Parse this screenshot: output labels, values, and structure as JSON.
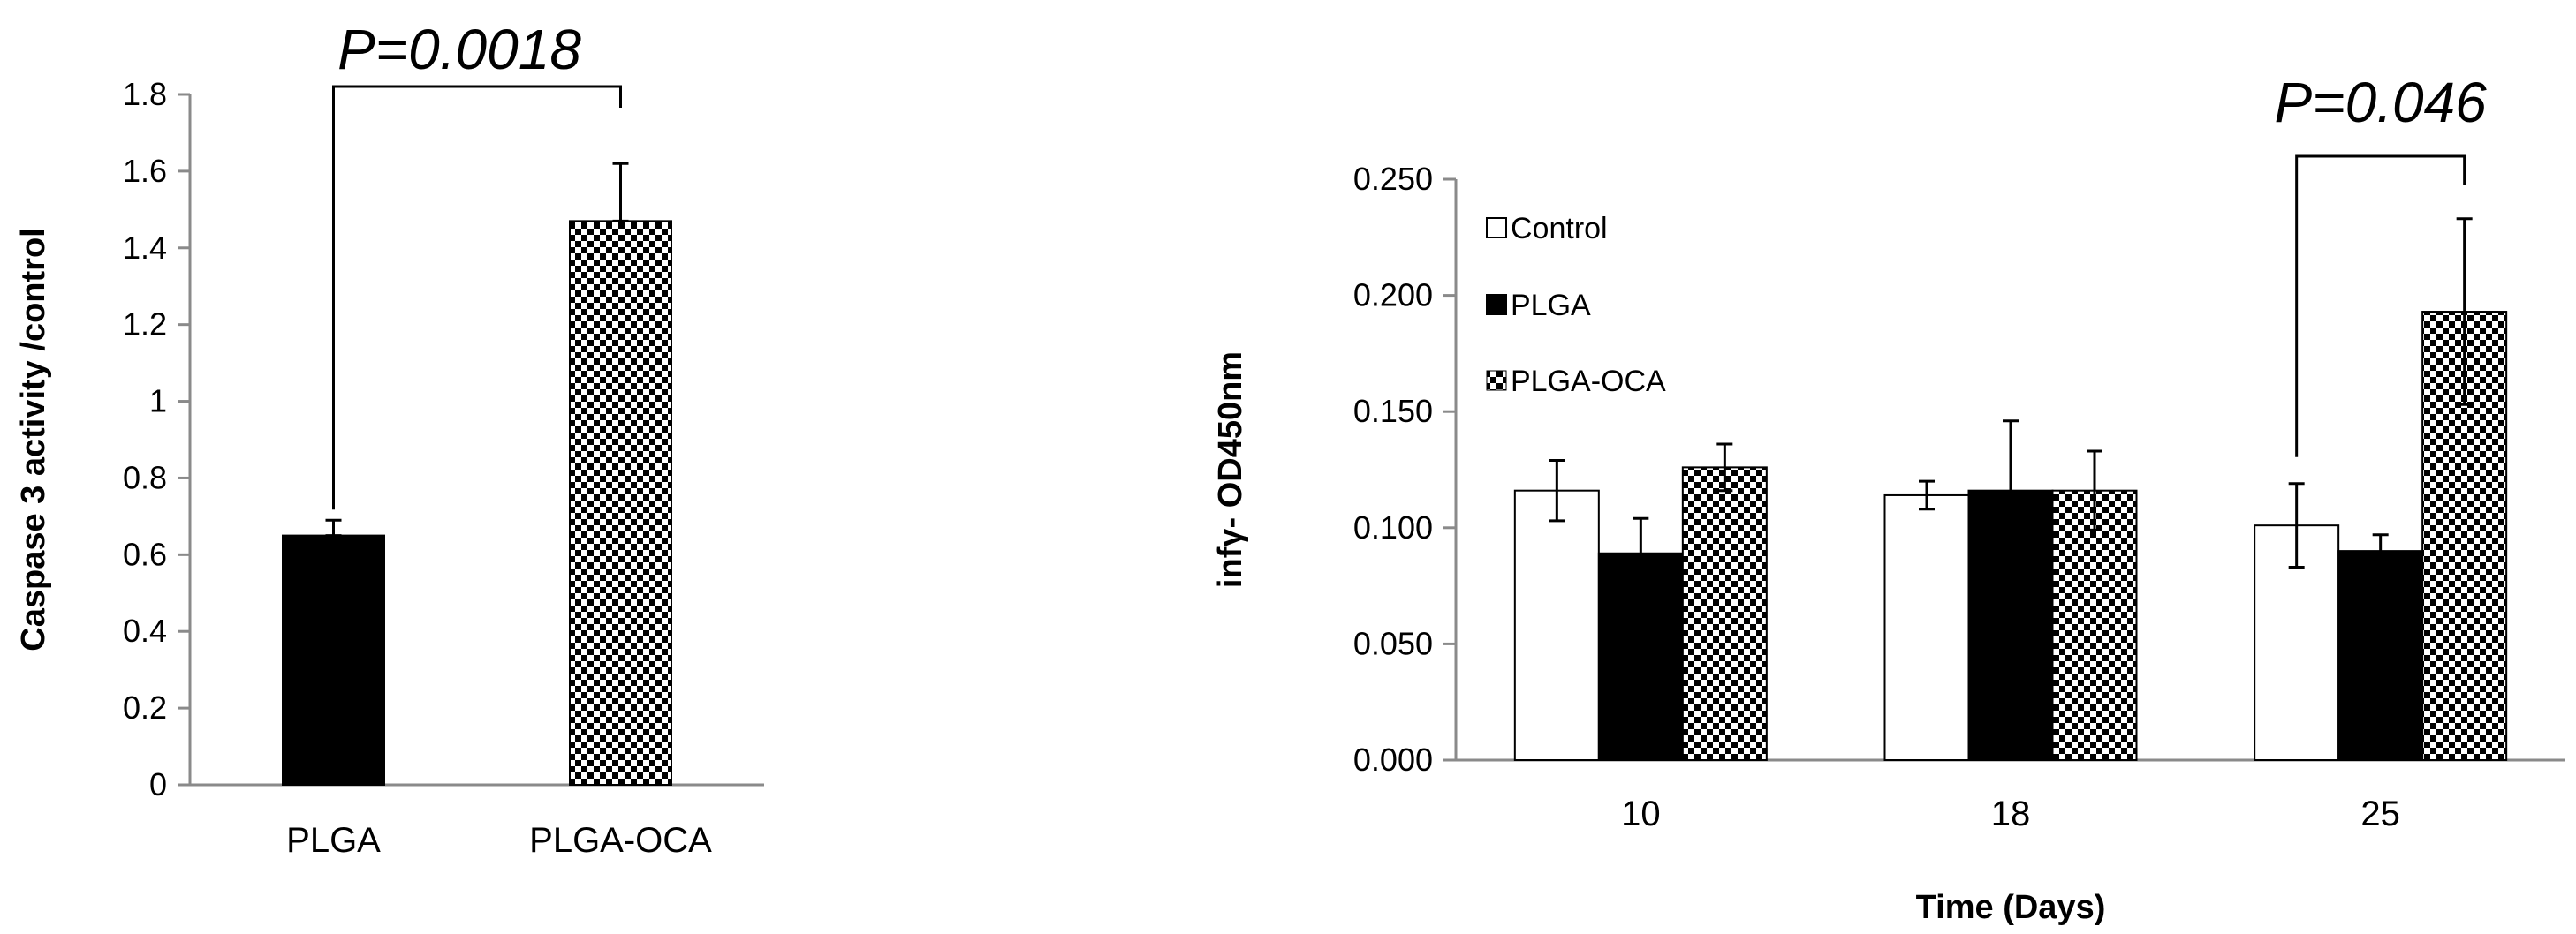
{
  "chart_data": [
    {
      "type": "bar",
      "categories": [
        "PLGA",
        "PLGA-OCA"
      ],
      "values": [
        0.65,
        1.47
      ],
      "errors": [
        0.04,
        0.15
      ],
      "fills": [
        "solid-black",
        "checkered"
      ],
      "ylabel": "Caspase 3 activity /control",
      "xlabel": "",
      "ylim": [
        0,
        1.8
      ],
      "yticks": [
        "0",
        "0.2",
        "0.4",
        "0.6",
        "0.8",
        "1",
        "1.2",
        "1.4",
        "1.6",
        "1.8"
      ],
      "annotation": {
        "text": "P=0.0018",
        "between": [
          "PLGA",
          "PLGA-OCA"
        ]
      },
      "grid": false
    },
    {
      "type": "bar",
      "categories": [
        "10",
        "18",
        "25"
      ],
      "series": [
        {
          "name": "Control",
          "fill": "white",
          "values": [
            0.116,
            0.114,
            0.101
          ],
          "errors": [
            0.013,
            0.006,
            0.018
          ]
        },
        {
          "name": "PLGA",
          "fill": "solid-black",
          "values": [
            0.089,
            0.116,
            0.09
          ],
          "errors": [
            0.015,
            0.03,
            0.007
          ]
        },
        {
          "name": "PLGA-OCA",
          "fill": "checkered",
          "values": [
            0.126,
            0.116,
            0.193
          ],
          "errors": [
            0.01,
            0.017,
            0.04
          ]
        }
      ],
      "ylabel": "infγ- OD450nm",
      "xlabel": "Time (Days)",
      "ylim": [
        0,
        0.25
      ],
      "yticks": [
        "0.000",
        "0.050",
        "0.100",
        "0.150",
        "0.200",
        "0.250"
      ],
      "legend": "top-left",
      "annotation": {
        "text": "P=0.046",
        "category": "25",
        "between": [
          "Control",
          "PLGA-OCA"
        ]
      },
      "grid": false
    }
  ],
  "colors": {
    "black": "#000000",
    "white": "#ffffff",
    "axis": "#8a8a8a"
  }
}
